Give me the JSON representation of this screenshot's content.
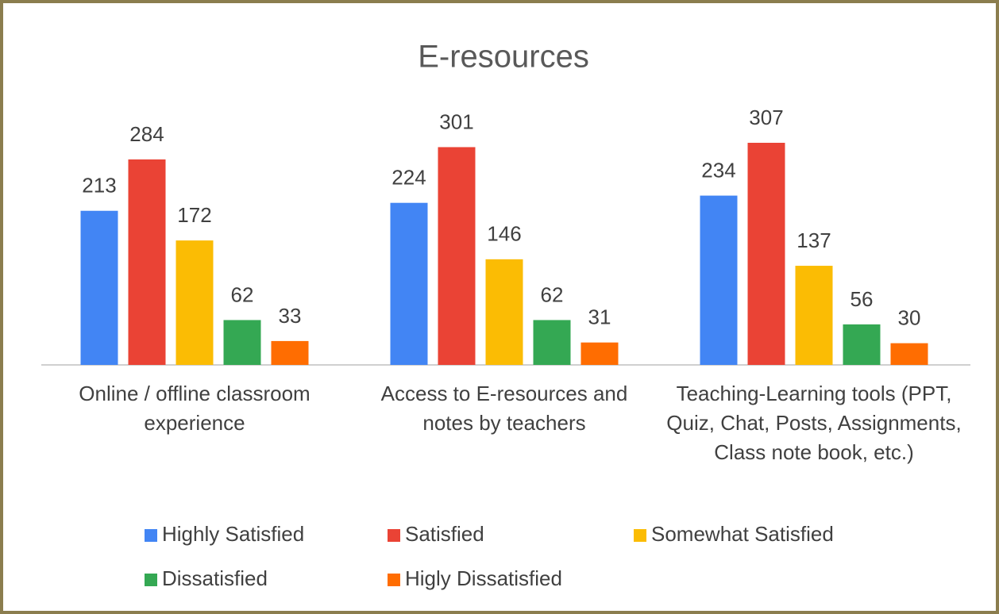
{
  "chart_data": {
    "type": "bar",
    "title": "E-resources",
    "categories": [
      "Online / offline classroom experience",
      "Access to E-resources and notes by teachers",
      "Teaching-Learning tools (PPT, Quiz, Chat, Posts, Assignments, Class note book, etc.)"
    ],
    "series": [
      {
        "name": "Highly Satisfied",
        "color": "#4285f4",
        "values": [
          213,
          224,
          234
        ]
      },
      {
        "name": "Satisfied",
        "color": "#ea4335",
        "values": [
          284,
          301,
          307
        ]
      },
      {
        "name": "Somewhat Satisfied",
        "color": "#fbbc04",
        "values": [
          172,
          146,
          137
        ]
      },
      {
        "name": "Dissatisfied",
        "color": "#34a853",
        "values": [
          62,
          62,
          56
        ]
      },
      {
        "name": "Higly Dissatisfied",
        "color": "#ff6d01",
        "values": [
          33,
          31,
          30
        ]
      }
    ],
    "legend": "bottom"
  }
}
